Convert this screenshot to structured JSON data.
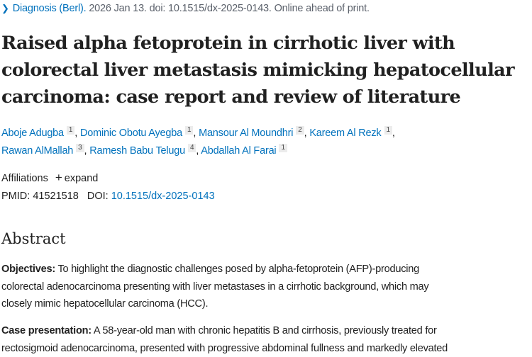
{
  "citation": {
    "journal": "Diagnosis (Berl).",
    "rest": " 2026 Jan 13. doi: 10.1515/dx-2025-0143. Online ahead of print."
  },
  "title_lines": [
    "Raised alpha fetoprotein in cirrhotic liver with",
    "colorectal liver metastasis mimicking hepatocellular",
    "carcinoma: case report and review of literature"
  ],
  "authors": [
    {
      "name": "Aboje Adugba",
      "aff": "1"
    },
    {
      "name": "Dominic Obotu Ayegba",
      "aff": "1"
    },
    {
      "name": "Mansour Al Moundhri",
      "aff": "2"
    },
    {
      "name": "Kareem Al Rezk",
      "aff": "1"
    },
    {
      "name": "Rawan AlMallah",
      "aff": "3"
    },
    {
      "name": "Ramesh Babu Telugu",
      "aff": "4"
    },
    {
      "name": "Abdallah Al Farai",
      "aff": "1"
    }
  ],
  "affiliations": {
    "label": "Affiliations",
    "toggle": "expand"
  },
  "ids": {
    "pmid_label": "PMID:",
    "pmid": "41521518",
    "doi_label": "DOI:",
    "doi": "10.1515/dx-2025-0143"
  },
  "abstract": {
    "heading": "Abstract",
    "objectives": {
      "label": "Objectives:",
      "lines": [
        " To highlight the diagnostic challenges posed by alpha-fetoprotein (AFP)-producing",
        "colorectal adenocarcinoma presenting with liver metastases in a cirrhotic background, which may",
        "closely mimic hepatocellular carcinoma (HCC)."
      ]
    },
    "case": {
      "label": "Case presentation:",
      "lines": [
        " A 58-year-old man with chronic hepatitis B and cirrhosis, previously treated for",
        "rectosigmoid adenocarcinoma, presented with progressive abdominal fullness and markedly elevated"
      ]
    }
  }
}
